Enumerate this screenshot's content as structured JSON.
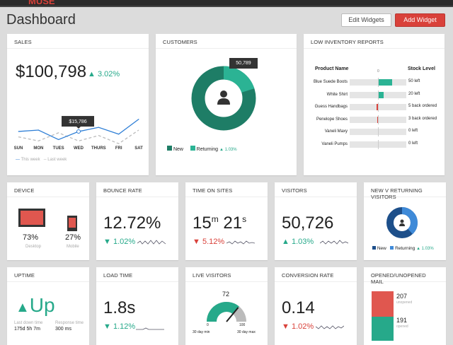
{
  "header": {
    "logo": "MUSE",
    "title": "Dashboard",
    "edit_label": "Edit Widgets",
    "add_label": "Add Widget"
  },
  "sales": {
    "title": "SALES",
    "value": "$100,798",
    "change": "3.02%",
    "tooltip": "$15,786",
    "legend": [
      "This week",
      "Last week"
    ]
  },
  "chart_data": {
    "type": "line",
    "categories": [
      "SUN",
      "MON",
      "TUES",
      "WED",
      "THURS",
      "FRI",
      "SAT"
    ],
    "series": [
      {
        "name": "This week",
        "values": [
          15800,
          16000,
          14600,
          15786,
          16400,
          15400,
          17600
        ]
      },
      {
        "name": "Last week",
        "values": [
          15000,
          14400,
          15600,
          14400,
          15200,
          14000,
          16000
        ]
      }
    ],
    "colors": [
      "#2f7fd6",
      "#bbbbbb"
    ]
  },
  "customers": {
    "title": "CUSTOMERS",
    "tooltip": "50,789",
    "legend_new": "New",
    "legend_returning": "Returning",
    "change": "1.03%",
    "returning_fraction": 0.2
  },
  "inventory": {
    "title": "LOW INVENTORY REPORTS",
    "col_product": "Product Name",
    "col_stock": "Stock Level",
    "zero": "0",
    "rows": [
      {
        "name": "Blue Suede Boots",
        "stock": "50 left",
        "value": 50
      },
      {
        "name": "White Shirt",
        "stock": "20 left",
        "value": 20
      },
      {
        "name": "Guess Handbags",
        "stock": "5 back ordered",
        "value": -5
      },
      {
        "name": "Penelope Shoes",
        "stock": "3 back ordered",
        "value": -3
      },
      {
        "name": "Vaneli Maxy",
        "stock": "0 left",
        "value": 0
      },
      {
        "name": "Vaneli Pumps",
        "stock": "0 left",
        "value": 0
      }
    ]
  },
  "device": {
    "title": "DEVICE",
    "desktop": "73%",
    "desktop_label": "Desktop",
    "mobile": "27%",
    "mobile_label": "Mobile"
  },
  "bounce": {
    "title": "BOUNCE RATE",
    "value": "12.72%",
    "change": "1.02%"
  },
  "time": {
    "title": "TIME ON SITES",
    "min": "15",
    "min_unit": "m",
    "sec": "21",
    "sec_unit": "s",
    "change": "5.12%"
  },
  "visitors": {
    "title": "VISITORS",
    "value": "50,726",
    "change": "1.03%"
  },
  "nvr": {
    "title": "NEW V RETURNING VISITORS",
    "new": "New",
    "returning": "Returning",
    "change": "1.03%",
    "returning_fraction": 0.38
  },
  "uptime": {
    "title": "UPTIME",
    "value": "Up",
    "down_label": "Last down time",
    "down_value": "175d 5h 7m",
    "resp_label": "Response time",
    "resp_value": "300 ms"
  },
  "load": {
    "title": "LOAD TIME",
    "value": "1.8s",
    "change": "1.12%"
  },
  "live": {
    "title": "LIVE VISITORS",
    "value": "72",
    "min": "0",
    "max": "100",
    "min_label": "30 day min",
    "max_label": "30 day max",
    "level": 0.72
  },
  "conversion": {
    "title": "CONVERSION RATE",
    "value": "0.14",
    "change": "1.02%"
  },
  "mail": {
    "title": "OPENED/UNOPENED MAIL",
    "unopened": "207",
    "unopened_label": "unopened",
    "opened": "191",
    "opened_label": "opened"
  }
}
